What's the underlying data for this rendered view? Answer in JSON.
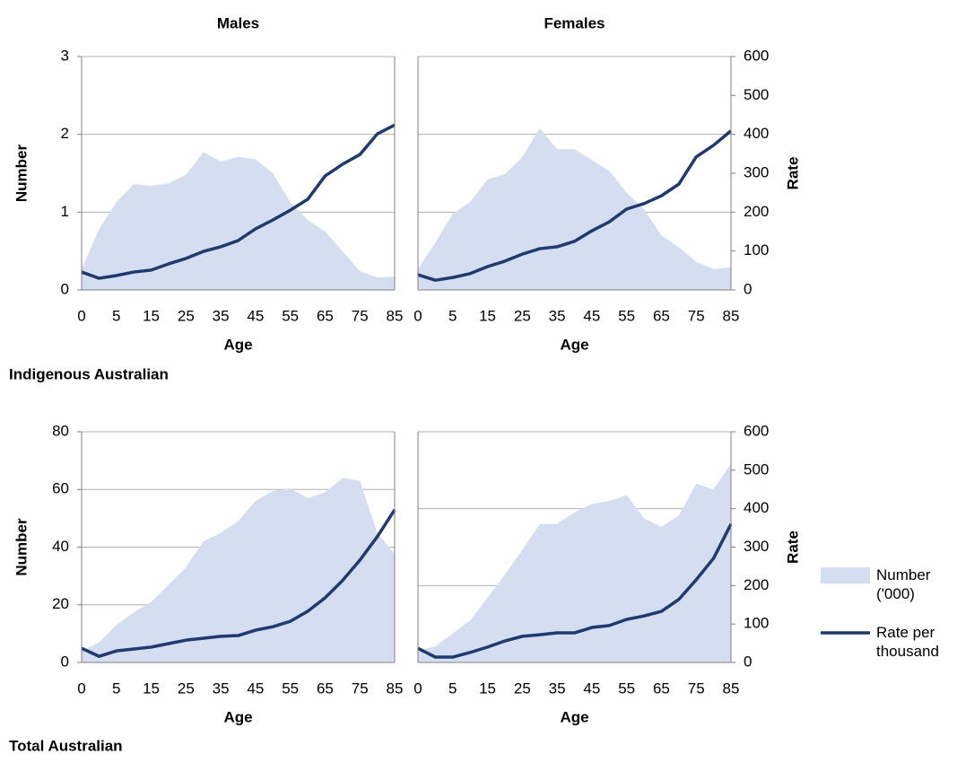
{
  "chart_data": [
    {
      "type": "area-line",
      "title": "Males",
      "y_label": "Number",
      "x_label": "Age",
      "categories": [
        "0",
        null,
        "5",
        null,
        "15",
        null,
        "25",
        null,
        "35",
        null,
        "45",
        null,
        "55",
        null,
        "65",
        null,
        "75",
        null,
        "85"
      ],
      "ylim": [
        0,
        3
      ],
      "yticks": [
        0,
        1,
        2,
        3
      ],
      "y2lim": [
        0,
        600
      ],
      "grid": true,
      "series": [
        {
          "name": "Number ('000)",
          "color": "#d5ddf1",
          "values": [
            0.27,
            0.78,
            1.13,
            1.36,
            1.34,
            1.37,
            1.48,
            1.77,
            1.65,
            1.71,
            1.68,
            1.5,
            1.13,
            0.9,
            0.75,
            0.5,
            0.24,
            0.16,
            0.17
          ]
        },
        {
          "name": "Rate per thousand",
          "color": "#1f3a6e",
          "axis": "y2",
          "values": [
            46,
            30,
            37,
            46,
            51,
            67,
            81,
            99,
            111,
            127,
            157,
            180,
            205,
            233,
            293,
            323,
            348,
            401,
            424
          ]
        }
      ]
    },
    {
      "type": "area-line",
      "title": "Females",
      "y_label": "Rate",
      "x_label": "Age",
      "categories": [
        "0",
        null,
        "5",
        null,
        "15",
        null,
        "25",
        null,
        "35",
        null,
        "45",
        null,
        "55",
        null,
        "65",
        null,
        "75",
        null,
        "85"
      ],
      "ylim": [
        0,
        3
      ],
      "y2lim": [
        0,
        600
      ],
      "y2ticks": [
        0,
        100,
        200,
        300,
        400,
        500,
        600
      ],
      "grid": true,
      "series": [
        {
          "name": "Number ('000)",
          "color": "#d5ddf1",
          "values": [
            0.27,
            0.61,
            0.98,
            1.13,
            1.42,
            1.49,
            1.71,
            2.08,
            1.81,
            1.81,
            1.67,
            1.53,
            1.25,
            1.04,
            0.7,
            0.55,
            0.36,
            0.27,
            0.29
          ]
        },
        {
          "name": "Rate per thousand",
          "color": "#1f3a6e",
          "axis": "y2",
          "values": [
            39,
            25,
            32,
            42,
            60,
            74,
            92,
            106,
            111,
            125,
            152,
            175,
            208,
            222,
            242,
            272,
            342,
            372,
            409
          ]
        }
      ]
    },
    {
      "type": "area-line",
      "y_label": "Number",
      "x_label": "Age",
      "categories": [
        "0",
        null,
        "5",
        null,
        "15",
        null,
        "25",
        null,
        "35",
        null,
        "45",
        null,
        "55",
        null,
        "65",
        null,
        "75",
        null,
        "85"
      ],
      "ylim": [
        0,
        80
      ],
      "yticks": [
        0,
        20,
        40,
        60,
        80
      ],
      "y2lim": [
        0,
        600
      ],
      "grid": true,
      "series": [
        {
          "name": "Number ('000)",
          "color": "#d5ddf1",
          "values": [
            4,
            7,
            13,
            17.4,
            21,
            27,
            33,
            42,
            45,
            49,
            56,
            59.5,
            60.4,
            57,
            59,
            64,
            63,
            45,
            37.7
          ]
        },
        {
          "name": "Rate per thousand",
          "color": "#1f3a6e",
          "axis": "y2",
          "values": [
            37,
            16,
            30,
            35,
            40,
            49,
            58,
            63,
            68,
            70,
            84,
            93,
            107,
            133,
            168,
            213,
            266,
            327,
            397
          ]
        }
      ]
    },
    {
      "type": "area-line",
      "y_label": "Rate",
      "x_label": "Age",
      "categories": [
        "0",
        null,
        "5",
        null,
        "15",
        null,
        "25",
        null,
        "35",
        null,
        "45",
        null,
        "55",
        null,
        "65",
        null,
        "75",
        null,
        "85"
      ],
      "ylim": [
        0,
        80
      ],
      "y2lim": [
        0,
        600
      ],
      "y2ticks": [
        0,
        100,
        200,
        300,
        400,
        500,
        600
      ],
      "grid": true,
      "series": [
        {
          "name": "Number ('000)",
          "color": "#d5ddf1",
          "values": [
            4,
            5.6,
            10,
            14.6,
            22.4,
            30.5,
            39,
            48,
            48,
            52,
            55,
            56,
            58,
            50,
            47,
            51,
            62,
            60,
            69
          ]
        },
        {
          "name": "Rate per thousand",
          "color": "#1f3a6e",
          "axis": "y2",
          "values": [
            37,
            14,
            14,
            26,
            40,
            56,
            68,
            72,
            77,
            77,
            91,
            96,
            112,
            121,
            133,
            164,
            215,
            271,
            360
          ]
        }
      ]
    }
  ],
  "sections": [
    "Indigenous Australian",
    "Total Australian"
  ]
}
